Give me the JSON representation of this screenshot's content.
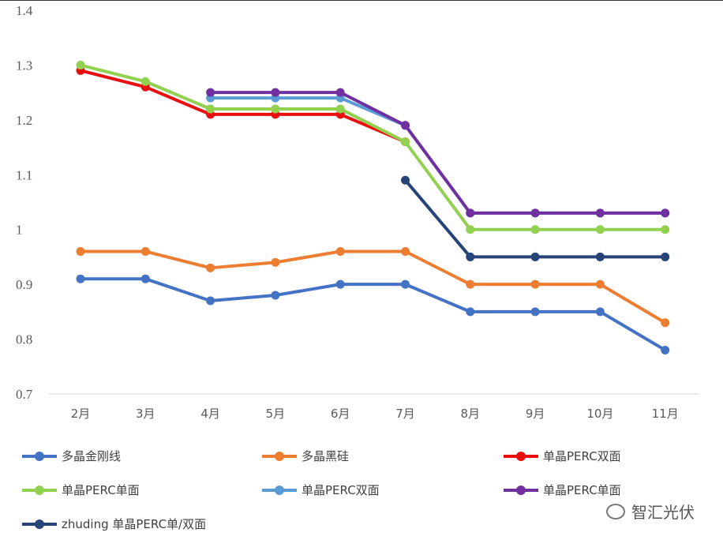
{
  "chart_data": {
    "type": "line",
    "title": "",
    "xlabel": "",
    "ylabel": "",
    "ylim": [
      0.7,
      1.4
    ],
    "yticks": [
      "0.7",
      "0.8",
      "0.9",
      "1",
      "1.1",
      "1.2",
      "1.3",
      "1.4"
    ],
    "categories": [
      "2月",
      "3月",
      "4月",
      "5月",
      "6月",
      "7月",
      "8月",
      "9月",
      "10月",
      "11月"
    ],
    "grid": false,
    "legend_position": "bottom",
    "series": [
      {
        "name": "多晶金刚线",
        "color": "#4472C4",
        "values": [
          0.91,
          0.91,
          0.87,
          0.88,
          0.9,
          0.9,
          0.85,
          0.85,
          0.85,
          0.78
        ]
      },
      {
        "name": "多晶黑硅",
        "color": "#ED7D31",
        "values": [
          0.96,
          0.96,
          0.93,
          0.94,
          0.96,
          0.96,
          0.9,
          0.9,
          0.9,
          0.83
        ]
      },
      {
        "name": "单晶PERC双面",
        "color": "#E8100F",
        "values": [
          1.29,
          1.26,
          1.21,
          1.21,
          1.21,
          1.16,
          null,
          null,
          null,
          null
        ]
      },
      {
        "name": "单晶PERC单面",
        "color": "#92D050",
        "values": [
          1.3,
          1.27,
          1.22,
          1.22,
          1.22,
          1.16,
          1.0,
          1.0,
          1.0,
          1.0
        ]
      },
      {
        "name": "单晶PERC双面",
        "color": "#5B9BD5",
        "values": [
          null,
          null,
          1.24,
          1.24,
          1.24,
          1.19,
          1.03,
          1.03,
          1.03,
          1.03
        ]
      },
      {
        "name": "单晶PERC单面",
        "color": "#7030A0",
        "values": [
          null,
          null,
          1.25,
          1.25,
          1.25,
          1.19,
          1.03,
          1.03,
          1.03,
          1.03
        ]
      },
      {
        "name": "zhuding 单晶PERC单/双面",
        "color": "#264478",
        "values": [
          null,
          null,
          null,
          null,
          null,
          1.09,
          0.95,
          0.95,
          0.95,
          0.95
        ]
      }
    ]
  },
  "watermark": "智汇光伏"
}
